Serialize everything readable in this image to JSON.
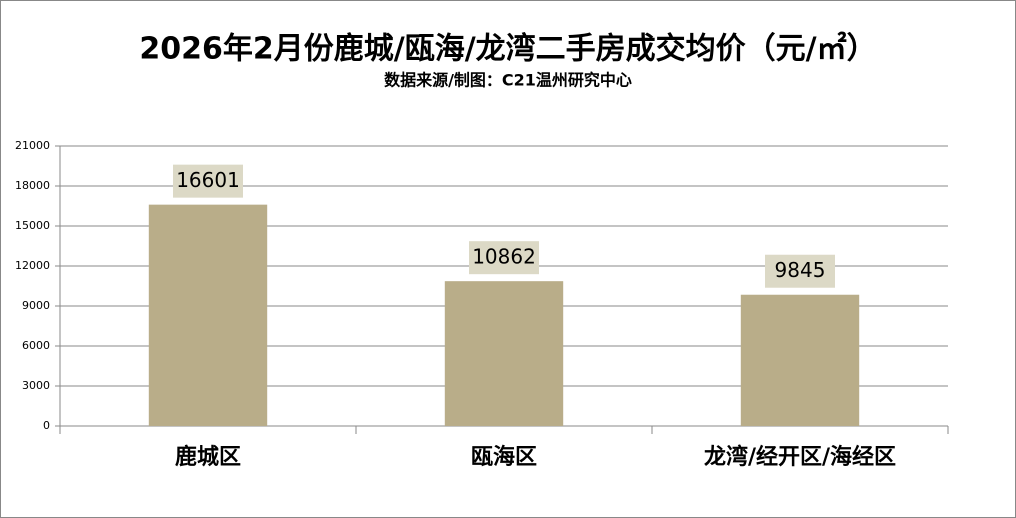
{
  "chart_data": {
    "type": "bar",
    "title": "2026年2月份鹿城/瓯海/龙湾二手房成交均价（元/㎡）",
    "subtitle": "数据来源/制图：C21温州研究中心",
    "categories": [
      "鹿城区",
      "瓯海区",
      "龙湾/经开区/海经区"
    ],
    "values": [
      16601,
      10862,
      9845
    ],
    "color": "#b9ad89",
    "ylim": [
      0,
      21000
    ],
    "yticks": [
      0,
      3000,
      6000,
      9000,
      12000,
      15000,
      18000,
      21000
    ],
    "grid": true
  }
}
